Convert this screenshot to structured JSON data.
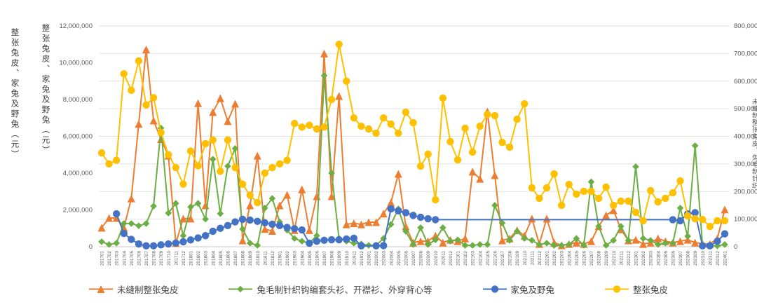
{
  "titles": {
    "left_1": "整张兔皮、家兔及野兔（元）",
    "left_2": "整张兔皮、家兔及野兔（元）"
  },
  "chart_data": {
    "type": "line",
    "grid": true,
    "legend_position": "bottom",
    "x": [
      "201701",
      "201702",
      "201703",
      "201704",
      "201705",
      "201706",
      "201707",
      "201708",
      "201709",
      "201710",
      "201711",
      "201712",
      "201801",
      "201802",
      "201803",
      "201804",
      "201805",
      "201806",
      "201807",
      "201808",
      "201809",
      "201810",
      "201811",
      "201812",
      "201901",
      "201902",
      "201903",
      "201904",
      "201905",
      "201906",
      "201907",
      "201908",
      "201909",
      "201910",
      "201911",
      "201912",
      "202001",
      "202002",
      "202003",
      "202004",
      "202005",
      "202006",
      "202007",
      "202008",
      "202009",
      "202010",
      "202011",
      "202012",
      "202101",
      "202102",
      "202103",
      "202104",
      "202105",
      "202106",
      "202107",
      "202108",
      "202109",
      "202110",
      "202111",
      "202112",
      "202201",
      "202202",
      "202203",
      "202204",
      "202205",
      "202206",
      "202207",
      "202208",
      "202209",
      "202210",
      "202211",
      "202212",
      "202301",
      "202302",
      "202303",
      "202304",
      "202305",
      "202306",
      "202307",
      "202308",
      "202309",
      "202310",
      "202311",
      "202312",
      "202401"
    ],
    "left_axis": {
      "title": "整张兔皮、家兔及野兔（元）",
      "max": 12000000,
      "ticks": [
        "0",
        "2,000,000",
        "4,000,000",
        "6,000,000",
        "8,000,000",
        "10,000,000",
        "12,000,000"
      ]
    },
    "right_axis": {
      "title": "未缝制整张兔皮、兔毛制针织钩编套头衫、开襟衫、外穿背心等（元）",
      "max": 800000,
      "ticks": [
        "0",
        "100,000",
        "200,000",
        "300,000",
        "400,000",
        "500,000",
        "600,000",
        "700,000",
        "800,000"
      ]
    },
    "series": [
      {
        "name": "未缝制整张兔皮",
        "color": "#ED7D31",
        "marker": "triangle",
        "axis": "right",
        "values": [
          69000,
          104000,
          104000,
          69000,
          175000,
          445000,
          715000,
          457000,
          390000,
          330000,
          13000,
          102000,
          102000,
          520000,
          150000,
          488000,
          538000,
          455000,
          518000,
          23000,
          150000,
          330000,
          64000,
          57000,
          150000,
          188000,
          60000,
          208000,
          60000,
          183000,
          700000,
          183000,
          546000,
          81000,
          85000,
          81000,
          89000,
          89000,
          120000,
          160000,
          264000,
          74000,
          15000,
          20000,
          20000,
          40000,
          15000,
          25000,
          20000,
          30000,
          272000,
          246000,
          490000,
          259000,
          23000,
          30000,
          60000,
          40000,
          102000,
          10000,
          102000,
          15000,
          5000,
          10000,
          15000,
          10000,
          20000,
          74000,
          114000,
          132000,
          63000,
          23000,
          25000,
          10000,
          15000,
          30000,
          20000,
          15000,
          20000,
          25000,
          15000,
          11000,
          10000,
          30000,
          135000
        ]
      },
      {
        "name": "兔毛制针织钩编套头衫、开襟衫、外穿背心等",
        "color": "#6BAE44",
        "marker": "diamond",
        "axis": "right",
        "values": [
          18000,
          8000,
          13000,
          84000,
          84000,
          76000,
          84000,
          147000,
          430000,
          122000,
          157000,
          40000,
          144000,
          157000,
          100000,
          317000,
          120000,
          292000,
          356000,
          64000,
          13000,
          5000,
          140000,
          175000,
          90000,
          60000,
          30000,
          20000,
          13000,
          40000,
          620000,
          267000,
          30000,
          20000,
          13000,
          10000,
          5000,
          5000,
          30000,
          81000,
          137000,
          56000,
          8000,
          69000,
          8000,
          25000,
          69000,
          20000,
          25000,
          5000,
          5000,
          8000,
          8000,
          150000,
          86000,
          23000,
          56000,
          30000,
          23000,
          8000,
          13000,
          5000,
          5000,
          8000,
          30000,
          5000,
          235000,
          74000,
          5000,
          23000,
          74000,
          23000,
          290000,
          30000,
          23000,
          8000,
          13000,
          13000,
          140000,
          38000,
          366000,
          5000,
          5000,
          3000,
          8000
        ]
      },
      {
        "name": "家兔及野兔",
        "color": "#4472C4",
        "marker": "circle",
        "axis": "left",
        "values": [
          null,
          null,
          1790000,
          720000,
          400000,
          150000,
          50000,
          50000,
          100000,
          150000,
          200000,
          270000,
          370000,
          480000,
          600000,
          840000,
          1000000,
          1150000,
          1350000,
          1490000,
          1450000,
          1380000,
          1300000,
          1220000,
          1150000,
          1050000,
          980000,
          910000,
          190000,
          300000,
          350000,
          380000,
          380000,
          420000,
          460000,
          50000,
          50000,
          50000,
          60000,
          2060000,
          1950000,
          1850000,
          1700000,
          1600000,
          1520000,
          1470000,
          1470000,
          1470000,
          1470000,
          1470000,
          1470000,
          1470000,
          1470000,
          1470000,
          1470000,
          1470000,
          1470000,
          1470000,
          1470000,
          1470000,
          1470000,
          1470000,
          1470000,
          1470000,
          1470000,
          1470000,
          1470000,
          1470000,
          1470000,
          1470000,
          1470000,
          1470000,
          1470000,
          1470000,
          1470000,
          1470000,
          1470000,
          1470000,
          1410000,
          1790000,
          1850000,
          50000,
          50000,
          300000,
          700000
        ]
      },
      {
        "name": "整张兔皮",
        "color": "#FFC000",
        "marker": "circle",
        "axis": "left",
        "values": [
          5100000,
          4500000,
          4700000,
          9400000,
          8500000,
          10100000,
          7700000,
          8100000,
          6200000,
          5000000,
          4300000,
          3400000,
          5200000,
          4400000,
          5600000,
          5800000,
          4100000,
          5800000,
          4300000,
          3400000,
          2800000,
          2400000,
          4000000,
          4300000,
          4500000,
          4700000,
          6700000,
          6500000,
          6600000,
          6400000,
          6500000,
          8000000,
          11000000,
          9000000,
          7000000,
          6550000,
          6400000,
          6170000,
          7000000,
          6670000,
          6170000,
          7310000,
          6740000,
          4380000,
          5030000,
          2550000,
          8080000,
          5710000,
          4720000,
          6440000,
          5140000,
          6550000,
          7190000,
          7120000,
          5670000,
          5410000,
          6930000,
          7770000,
          3200000,
          2630000,
          3200000,
          3960000,
          2250000,
          3390000,
          2860000,
          3010000,
          3010000,
          2630000,
          3240000,
          2250000,
          2480000,
          2480000,
          1870000,
          1410000,
          3050000,
          2440000,
          2630000,
          2930000,
          3580000,
          1680000,
          1520000,
          1480000,
          1100000,
          1410000,
          1410000
        ]
      }
    ]
  }
}
